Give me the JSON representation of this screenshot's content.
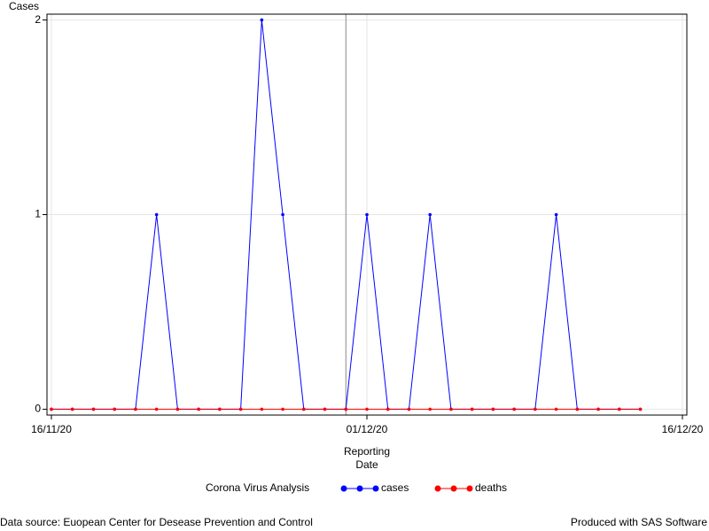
{
  "chart_data": {
    "type": "line",
    "ylabel": "Cases",
    "xlabel": [
      "Reporting",
      "Date"
    ],
    "legend_title": "Corona Virus Analysis",
    "footnote_left": "Data source: Euopean Center for Desease Prevention and Control",
    "footnote_right": "Produced with SAS Software",
    "x": [
      "16/11/20",
      "17/11/20",
      "18/11/20",
      "19/11/20",
      "20/11/20",
      "21/11/20",
      "22/11/20",
      "23/11/20",
      "24/11/20",
      "25/11/20",
      "26/11/20",
      "27/11/20",
      "28/11/20",
      "29/11/20",
      "30/11/20",
      "01/12/20",
      "02/12/20",
      "03/12/20",
      "04/12/20",
      "05/12/20",
      "06/12/20",
      "07/12/20",
      "08/12/20",
      "09/12/20",
      "10/12/20",
      "11/12/20",
      "12/12/20",
      "13/12/20",
      "14/12/20"
    ],
    "series": [
      {
        "name": "cases",
        "color": "#0000ff",
        "values": [
          0,
          0,
          0,
          0,
          0,
          1,
          0,
          0,
          0,
          0,
          2,
          1,
          0,
          0,
          0,
          1,
          0,
          0,
          1,
          0,
          0,
          0,
          0,
          0,
          1,
          0,
          0,
          0,
          0
        ]
      },
      {
        "name": "deaths",
        "color": "#ff0000",
        "values": [
          0,
          0,
          0,
          0,
          0,
          0,
          0,
          0,
          0,
          0,
          0,
          0,
          0,
          0,
          0,
          0,
          0,
          0,
          0,
          0,
          0,
          0,
          0,
          0,
          0,
          0,
          0,
          0,
          0
        ]
      }
    ],
    "xlim": [
      "16/11/20",
      "16/12/20"
    ],
    "xticks": [
      "16/11/20",
      "01/12/20",
      "16/12/20"
    ],
    "ylim": [
      -0.03,
      2.03
    ],
    "yticks": [
      0,
      1,
      2
    ],
    "reference_line_x": "30/11/20",
    "grid": true
  }
}
